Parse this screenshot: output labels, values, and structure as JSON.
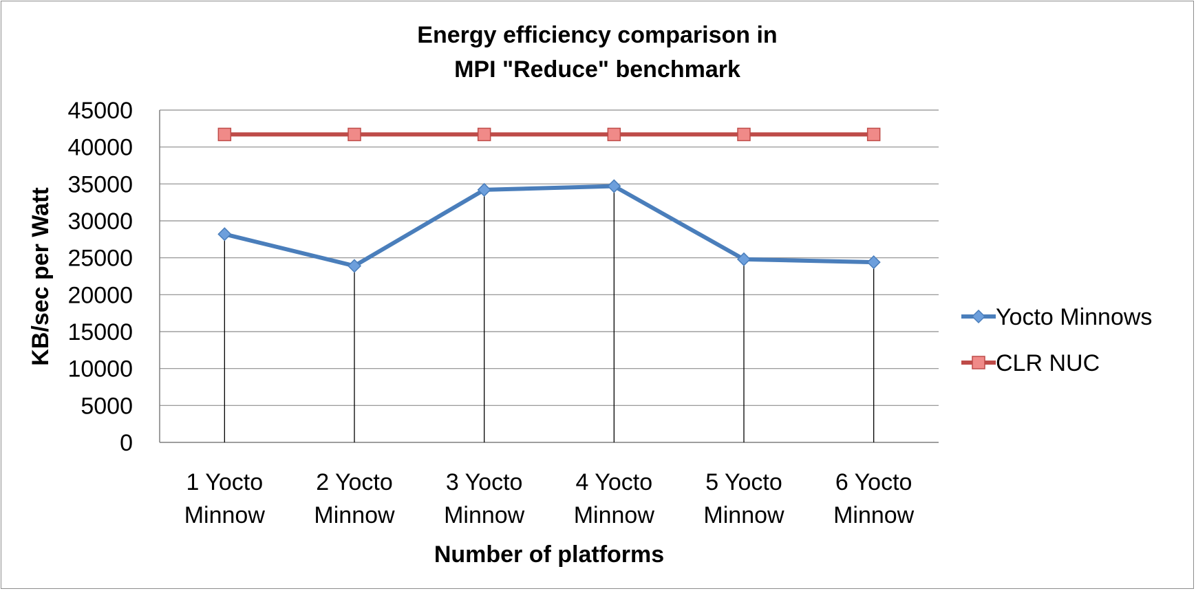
{
  "chart_data": {
    "type": "line",
    "title_lines": [
      "Energy efficiency comparison in",
      "MPI \"Reduce\" benchmark"
    ],
    "xlabel": "Number of platforms",
    "ylabel": "KB/sec per Watt",
    "categories": [
      [
        "1 Yocto",
        "Minnow"
      ],
      [
        "2 Yocto",
        "Minnow"
      ],
      [
        "3 Yocto",
        "Minnow"
      ],
      [
        "4 Yocto",
        "Minnow"
      ],
      [
        "5 Yocto",
        "Minnow"
      ],
      [
        "6 Yocto",
        "Minnow"
      ]
    ],
    "ylim": [
      0,
      45000
    ],
    "yticks": [
      "0",
      "5000",
      "10000",
      "15000",
      "20000",
      "25000",
      "30000",
      "35000",
      "40000",
      "45000"
    ],
    "grid": true,
    "drop_lines": true,
    "legend_position": "right",
    "series": [
      {
        "name": "Yocto Minnows",
        "marker": "diamond",
        "color": "#4a7ebb",
        "marker_fill": "#6d9fdc",
        "values": [
          28200,
          23900,
          34200,
          34700,
          24800,
          24400
        ]
      },
      {
        "name": "CLR NUC",
        "marker": "square",
        "color": "#be4b48",
        "marker_fill": "#f08a88",
        "values": [
          41700,
          41700,
          41700,
          41700,
          41700,
          41700
        ]
      }
    ]
  }
}
